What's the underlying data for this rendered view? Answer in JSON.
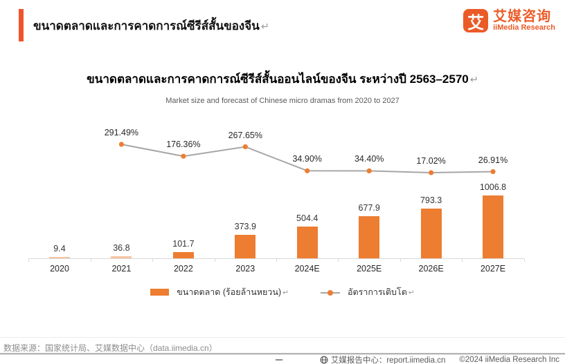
{
  "header": {
    "title": "ขนาดตลาดและการคาดการณ์ซีรีส์สั้นของจีน",
    "return_mark": "↵"
  },
  "logo": {
    "glyph": "艾",
    "name_cn": "艾媒咨询",
    "name_en": "iiMedia Research",
    "brand_color": "#EB5B28"
  },
  "chart_data": {
    "type": "bar",
    "title": "ขนาดตลาดและการคาดการณ์ซีรีส์สั้นออนไลน์ของจีน ระหว่างปี 2563–2570",
    "subtitle": "Market size and forecast of Chinese micro dramas from 2020 to 2027",
    "categories": [
      "2020",
      "2021",
      "2022",
      "2023",
      "2024E",
      "2025E",
      "2026E",
      "2027E"
    ],
    "series": [
      {
        "name": "ขนาดตลาด (ร้อยล้านหยวน)",
        "type": "bar",
        "values": [
          9.4,
          36.8,
          101.7,
          373.9,
          504.4,
          677.9,
          793.3,
          1006.8
        ],
        "color": "#ED7D31"
      },
      {
        "name": "อัตราการเติบโต",
        "type": "line",
        "values": [
          null,
          291.49,
          176.36,
          267.65,
          34.9,
          34.4,
          17.02,
          26.91
        ],
        "unit": "%",
        "line_color": "#A6A6A6",
        "marker_color": "#ED7D31"
      }
    ],
    "ylim_bars": [
      0,
      1100
    ],
    "ylim_growth": [
      0,
      320
    ],
    "grid": false,
    "legend_position": "bottom",
    "return_mark": "↵"
  },
  "footer": {
    "source": "数据来源：国家统计局、艾媒数据中心（data.iimedia.cn）",
    "report_center": "艾媒报告中心：report.iimedia.cn",
    "copyright": "©2024  iiMedia Research Inc"
  },
  "colors": {
    "accent_orange": "#ED7D31",
    "brand_orange": "#EB5B28",
    "line_gray": "#A6A6A6"
  }
}
